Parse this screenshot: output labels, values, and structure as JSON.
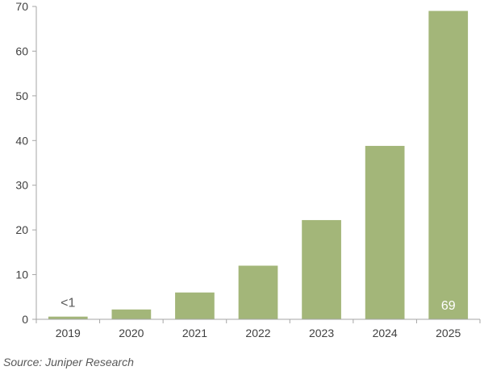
{
  "chart_data": {
    "type": "bar",
    "title": "",
    "xlabel": "",
    "ylabel": "",
    "categories": [
      "2019",
      "2020",
      "2021",
      "2022",
      "2023",
      "2024",
      "2025"
    ],
    "values": [
      0.6,
      2.2,
      6,
      12,
      22.2,
      38.8,
      69
    ],
    "ylim": [
      0,
      70
    ],
    "yticks": [
      "0",
      "10",
      "20",
      "30",
      "40",
      "50",
      "60",
      "70"
    ],
    "data_labels": [
      "<1",
      "",
      "",
      "",
      "",
      "",
      "69"
    ],
    "grid": false,
    "legend": "none",
    "colors": {
      "bar": "#a3b679",
      "axis": "#a6a6a6",
      "inside_label": "#ffffff",
      "outside_label": "#595959"
    }
  },
  "source": "Source: Juniper Research"
}
